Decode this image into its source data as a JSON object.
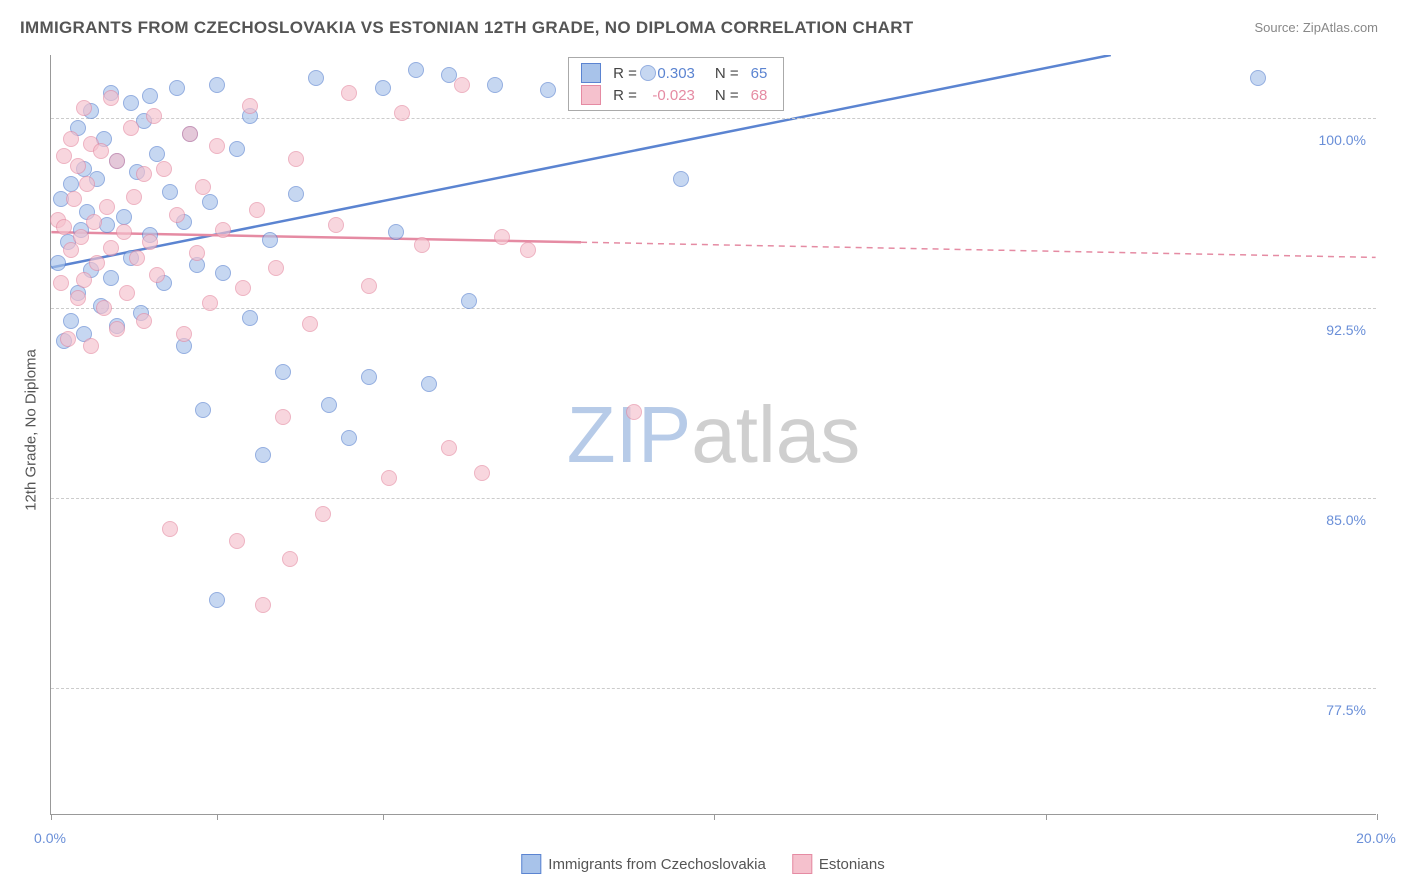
{
  "title": "IMMIGRANTS FROM CZECHOSLOVAKIA VS ESTONIAN 12TH GRADE, NO DIPLOMA CORRELATION CHART",
  "source": "Source: ZipAtlas.com",
  "y_axis_label": "12th Grade, No Diploma",
  "watermark": {
    "part1": "ZIP",
    "part2": "atlas",
    "color1": "#b7cbe8",
    "color2": "#cfcfcf"
  },
  "chart": {
    "type": "scatter",
    "xlim": [
      0,
      20
    ],
    "ylim": [
      72.5,
      102.5
    ],
    "x_ticks": [
      0,
      2.5,
      5,
      10,
      15,
      20
    ],
    "x_tick_labels": {
      "0": "0.0%",
      "20": "20.0%"
    },
    "y_gridlines": [
      77.5,
      85.0,
      92.5,
      100.0
    ],
    "y_tick_labels": [
      "77.5%",
      "85.0%",
      "92.5%",
      "100.0%"
    ],
    "grid_color": "#cccccc",
    "axis_color": "#999999",
    "label_color": "#6a8fd8",
    "label_fontsize": 14,
    "point_radius": 8,
    "series": [
      {
        "name": "Immigrants from Czechoslovakia",
        "fill": "#a8c3ea",
        "stroke": "#5b84d1",
        "opacity": 0.65,
        "R": "0.303",
        "N": "65",
        "trend": {
          "x1": 0,
          "y1": 94.1,
          "x2": 16.0,
          "y2": 102.5,
          "dash_from_x": 20
        },
        "points": [
          [
            0.1,
            94.3
          ],
          [
            0.15,
            96.8
          ],
          [
            0.2,
            91.2
          ],
          [
            0.25,
            95.1
          ],
          [
            0.3,
            97.4
          ],
          [
            0.3,
            92.0
          ],
          [
            0.4,
            99.6
          ],
          [
            0.4,
            93.1
          ],
          [
            0.45,
            95.6
          ],
          [
            0.5,
            98.0
          ],
          [
            0.5,
            91.5
          ],
          [
            0.55,
            96.3
          ],
          [
            0.6,
            100.3
          ],
          [
            0.6,
            94.0
          ],
          [
            0.7,
            97.6
          ],
          [
            0.75,
            92.6
          ],
          [
            0.8,
            99.2
          ],
          [
            0.85,
            95.8
          ],
          [
            0.9,
            101.0
          ],
          [
            0.9,
            93.7
          ],
          [
            1.0,
            98.3
          ],
          [
            1.0,
            91.8
          ],
          [
            1.1,
            96.1
          ],
          [
            1.2,
            100.6
          ],
          [
            1.2,
            94.5
          ],
          [
            1.3,
            97.9
          ],
          [
            1.35,
            92.3
          ],
          [
            1.4,
            99.9
          ],
          [
            1.5,
            100.9
          ],
          [
            1.5,
            95.4
          ],
          [
            1.6,
            98.6
          ],
          [
            1.7,
            93.5
          ],
          [
            1.8,
            97.1
          ],
          [
            1.9,
            101.2
          ],
          [
            2.0,
            91.0
          ],
          [
            2.0,
            95.9
          ],
          [
            2.1,
            99.4
          ],
          [
            2.2,
            94.2
          ],
          [
            2.3,
            88.5
          ],
          [
            2.4,
            96.7
          ],
          [
            2.5,
            101.3
          ],
          [
            2.5,
            81.0
          ],
          [
            2.6,
            93.9
          ],
          [
            2.8,
            98.8
          ],
          [
            3.0,
            92.1
          ],
          [
            3.0,
            100.1
          ],
          [
            3.2,
            86.7
          ],
          [
            3.3,
            95.2
          ],
          [
            3.5,
            90.0
          ],
          [
            3.7,
            97.0
          ],
          [
            4.0,
            101.6
          ],
          [
            4.2,
            88.7
          ],
          [
            4.5,
            87.4
          ],
          [
            4.8,
            89.8
          ],
          [
            5.0,
            101.2
          ],
          [
            5.2,
            95.5
          ],
          [
            5.5,
            101.9
          ],
          [
            5.7,
            89.5
          ],
          [
            6.0,
            101.7
          ],
          [
            6.3,
            92.8
          ],
          [
            6.7,
            101.3
          ],
          [
            9.5,
            97.6
          ],
          [
            9.0,
            101.8
          ],
          [
            7.5,
            101.1
          ],
          [
            18.2,
            101.6
          ]
        ]
      },
      {
        "name": "Estonians",
        "fill": "#f5c1cd",
        "stroke": "#e58ba3",
        "opacity": 0.65,
        "R": "-0.023",
        "N": "68",
        "trend": {
          "x1": 0,
          "y1": 95.5,
          "x2": 20,
          "y2": 94.5,
          "dash_from_x": 8
        },
        "points": [
          [
            0.1,
            96.0
          ],
          [
            0.15,
            93.5
          ],
          [
            0.2,
            98.5
          ],
          [
            0.2,
            95.7
          ],
          [
            0.25,
            91.3
          ],
          [
            0.3,
            99.2
          ],
          [
            0.3,
            94.8
          ],
          [
            0.35,
            96.8
          ],
          [
            0.4,
            92.9
          ],
          [
            0.4,
            98.1
          ],
          [
            0.45,
            95.3
          ],
          [
            0.5,
            100.4
          ],
          [
            0.5,
            93.6
          ],
          [
            0.55,
            97.4
          ],
          [
            0.6,
            91.0
          ],
          [
            0.6,
            99.0
          ],
          [
            0.65,
            95.9
          ],
          [
            0.7,
            94.3
          ],
          [
            0.75,
            98.7
          ],
          [
            0.8,
            92.5
          ],
          [
            0.85,
            96.5
          ],
          [
            0.9,
            100.8
          ],
          [
            0.9,
            94.9
          ],
          [
            1.0,
            91.7
          ],
          [
            1.0,
            98.3
          ],
          [
            1.1,
            95.5
          ],
          [
            1.15,
            93.1
          ],
          [
            1.2,
            99.6
          ],
          [
            1.25,
            96.9
          ],
          [
            1.3,
            94.5
          ],
          [
            1.4,
            92.0
          ],
          [
            1.4,
            97.8
          ],
          [
            1.5,
            95.1
          ],
          [
            1.55,
            100.1
          ],
          [
            1.6,
            93.8
          ],
          [
            1.7,
            98.0
          ],
          [
            1.8,
            83.8
          ],
          [
            1.9,
            96.2
          ],
          [
            2.0,
            91.5
          ],
          [
            2.1,
            99.4
          ],
          [
            2.2,
            94.7
          ],
          [
            2.3,
            97.3
          ],
          [
            2.4,
            92.7
          ],
          [
            2.5,
            98.9
          ],
          [
            2.6,
            95.6
          ],
          [
            2.8,
            83.3
          ],
          [
            2.9,
            93.3
          ],
          [
            3.0,
            100.5
          ],
          [
            3.1,
            96.4
          ],
          [
            3.2,
            80.8
          ],
          [
            3.4,
            94.1
          ],
          [
            3.5,
            88.2
          ],
          [
            3.6,
            82.6
          ],
          [
            3.7,
            98.4
          ],
          [
            3.9,
            91.9
          ],
          [
            4.1,
            84.4
          ],
          [
            4.3,
            95.8
          ],
          [
            4.5,
            101.0
          ],
          [
            4.8,
            93.4
          ],
          [
            5.1,
            85.8
          ],
          [
            5.3,
            100.2
          ],
          [
            5.6,
            95.0
          ],
          [
            6.0,
            87.0
          ],
          [
            6.2,
            101.3
          ],
          [
            6.5,
            86.0
          ],
          [
            6.8,
            95.3
          ],
          [
            7.2,
            94.8
          ],
          [
            8.8,
            88.4
          ]
        ]
      }
    ]
  },
  "legend_top": {
    "R_label": "R =",
    "N_label": "N ="
  },
  "legend_bottom": {}
}
